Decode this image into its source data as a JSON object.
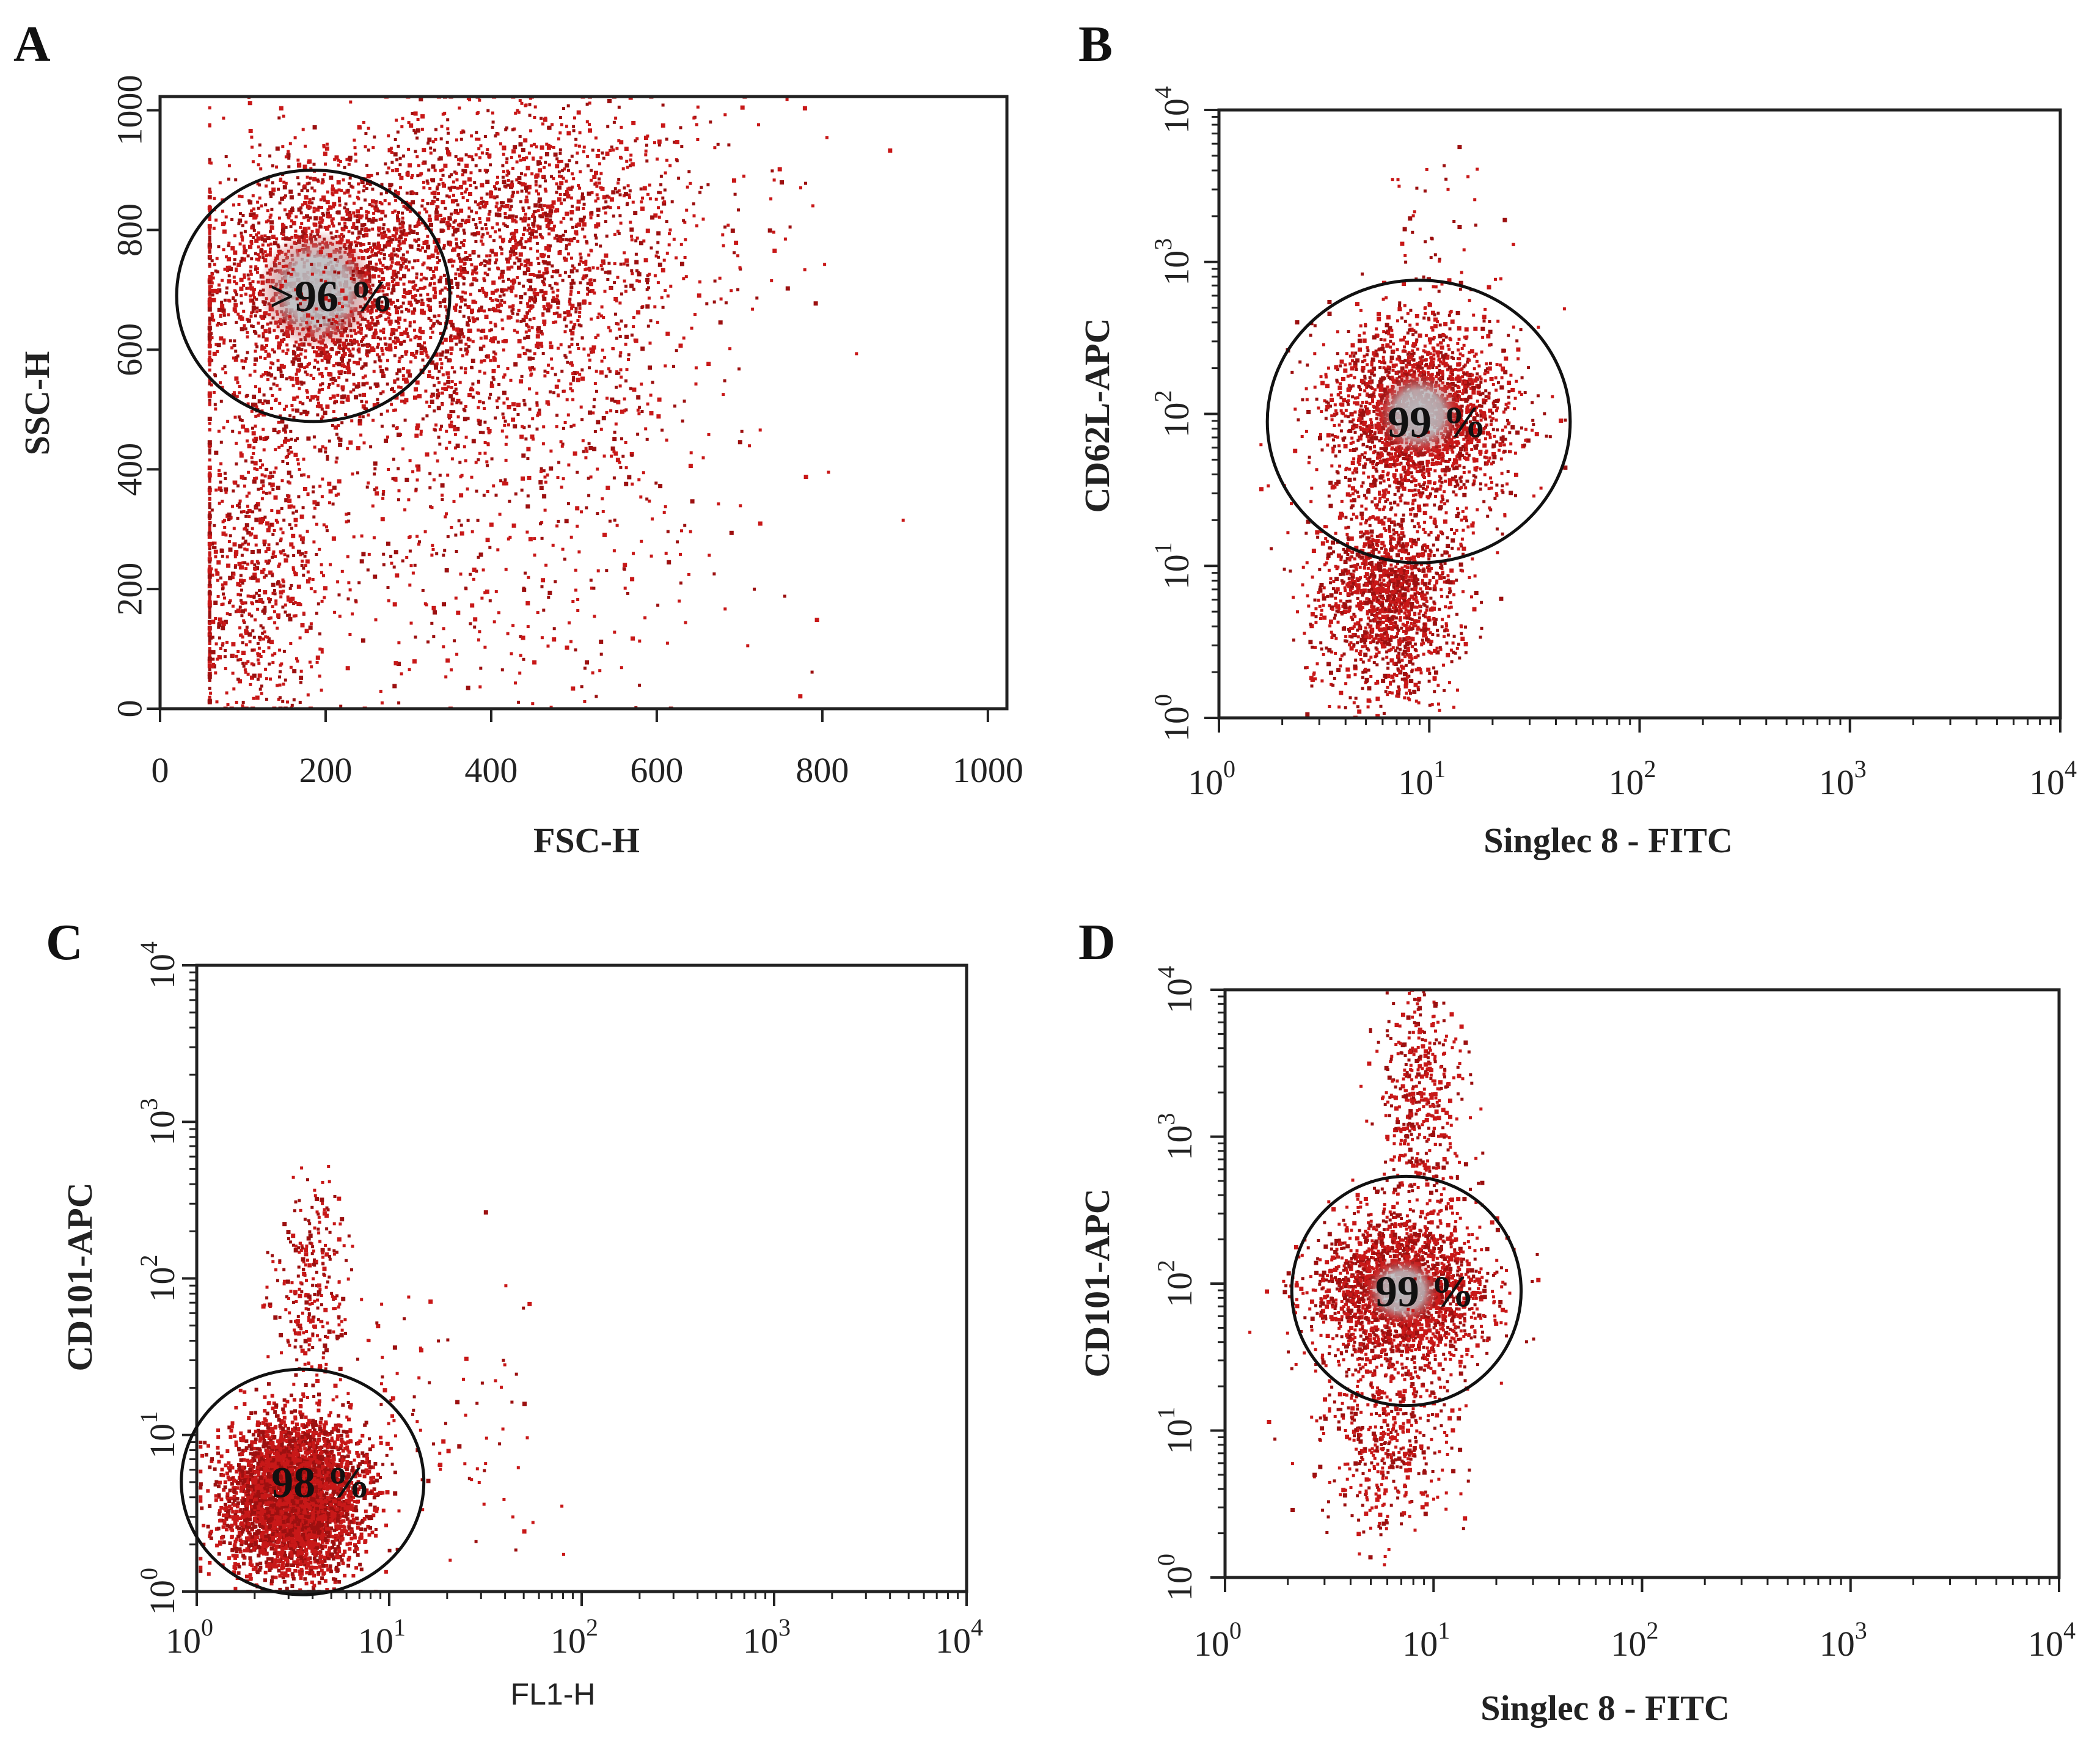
{
  "figure": {
    "colors": {
      "dot": "#c81818",
      "dot_dark": "#9c1010",
      "dense_core": "#b9b9bd",
      "gate": "#111111",
      "axis": "#222222"
    }
  },
  "chart_data": [
    {
      "panel": "A",
      "type": "scatter",
      "subtype": "flow-cytometry-density-dot-plot",
      "xlabel": "FSC-H",
      "ylabel": "SSC-H",
      "xscale": "linear",
      "yscale": "linear",
      "xlim": [
        0,
        1023
      ],
      "ylim": [
        0,
        1023
      ],
      "x_ticks": [
        "0",
        "200",
        "400",
        "600",
        "800",
        "1000"
      ],
      "x_tick_values": [
        0,
        200,
        400,
        600,
        800,
        1000
      ],
      "y_ticks": [
        "0",
        "200",
        "400",
        "600",
        "800",
        "1000"
      ],
      "y_tick_values": [
        0,
        200,
        400,
        600,
        800,
        1000
      ],
      "gate": {
        "shape": "circle",
        "center": [
          185,
          690
        ],
        "radius_x": 165,
        "radius_y": 210,
        "label": ">96 %"
      },
      "populations": [
        {
          "center": [
            190,
            700
          ],
          "spread": [
            75,
            105
          ],
          "count": 1800,
          "core": true
        },
        {
          "center": [
            380,
            680
          ],
          "spread": [
            130,
            170
          ],
          "count": 1800,
          "core": false
        },
        {
          "center": [
            430,
            820
          ],
          "spread": [
            130,
            120
          ],
          "count": 900,
          "core": false
        },
        {
          "center": [
            110,
            220
          ],
          "spread": [
            50,
            170
          ],
          "count": 900,
          "core": false
        },
        {
          "center": [
            420,
            250
          ],
          "spread": [
            150,
            140
          ],
          "count": 350,
          "core": false
        }
      ]
    },
    {
      "panel": "B",
      "type": "scatter",
      "subtype": "flow-cytometry-density-dot-plot",
      "xlabel": "Singlec 8 - FITC",
      "ylabel": "CD62L-APC",
      "xscale": "log",
      "yscale": "log",
      "xlim": [
        1,
        10000
      ],
      "ylim": [
        1,
        10000
      ],
      "x_ticks": [
        {
          "base": "10",
          "exp": "0"
        },
        {
          "base": "10",
          "exp": "1"
        },
        {
          "base": "10",
          "exp": "2"
        },
        {
          "base": "10",
          "exp": "3"
        },
        {
          "base": "10",
          "exp": "4"
        }
      ],
      "y_ticks": [
        {
          "base": "10",
          "exp": "0"
        },
        {
          "base": "10",
          "exp": "1"
        },
        {
          "base": "10",
          "exp": "2"
        },
        {
          "base": "10",
          "exp": "3"
        },
        {
          "base": "10",
          "exp": "4"
        }
      ],
      "gate": {
        "shape": "circle",
        "center_log": [
          0.95,
          1.95
        ],
        "radius_log_x": 0.72,
        "radius_log_y": 0.93,
        "label": "99 %"
      },
      "populations": [
        {
          "center_log": [
            0.95,
            2.0
          ],
          "spread_log": [
            0.22,
            0.3
          ],
          "count": 2200,
          "core": true
        },
        {
          "center_log": [
            0.8,
            0.8
          ],
          "spread_log": [
            0.17,
            0.35
          ],
          "count": 1500,
          "core": false
        },
        {
          "center_log": [
            1.05,
            3.1
          ],
          "spread_log": [
            0.15,
            0.45
          ],
          "count": 60,
          "core": false
        }
      ]
    },
    {
      "panel": "C",
      "type": "scatter",
      "subtype": "flow-cytometry-density-dot-plot",
      "xlabel": "FL1-H",
      "ylabel": "CD101-APC",
      "xscale": "log",
      "yscale": "log",
      "xlim": [
        1,
        10000
      ],
      "ylim": [
        1,
        10000
      ],
      "x_ticks": [
        {
          "base": "10",
          "exp": "0"
        },
        {
          "base": "10",
          "exp": "1"
        },
        {
          "base": "10",
          "exp": "2"
        },
        {
          "base": "10",
          "exp": "3"
        },
        {
          "base": "10",
          "exp": "4"
        }
      ],
      "y_ticks": [
        {
          "base": "10",
          "exp": "0"
        },
        {
          "base": "10",
          "exp": "1"
        },
        {
          "base": "10",
          "exp": "2"
        },
        {
          "base": "10",
          "exp": "3"
        },
        {
          "base": "10",
          "exp": "4"
        }
      ],
      "gate": {
        "shape": "circle",
        "center_log": [
          0.55,
          0.7
        ],
        "radius_log_x": 0.63,
        "radius_log_y": 0.72,
        "label": "98 %"
      },
      "populations": [
        {
          "center_log": [
            0.5,
            0.6
          ],
          "spread_log": [
            0.17,
            0.24
          ],
          "count": 3800,
          "core": false,
          "saturated": true
        },
        {
          "center_log": [
            0.6,
            1.95
          ],
          "spread_log": [
            0.1,
            0.35
          ],
          "count": 280,
          "core": false
        },
        {
          "center_log": [
            1.2,
            1.2
          ],
          "spread_log": [
            0.35,
            0.5
          ],
          "count": 120,
          "core": false
        }
      ]
    },
    {
      "panel": "D",
      "type": "scatter",
      "subtype": "flow-cytometry-density-dot-plot",
      "xlabel": "Singlec 8 - FITC",
      "ylabel": "CD101-APC",
      "xscale": "log",
      "yscale": "log",
      "xlim": [
        1,
        10000
      ],
      "ylim": [
        1,
        10000
      ],
      "x_ticks": [
        {
          "base": "10",
          "exp": "0"
        },
        {
          "base": "10",
          "exp": "1"
        },
        {
          "base": "10",
          "exp": "2"
        },
        {
          "base": "10",
          "exp": "3"
        },
        {
          "base": "10",
          "exp": "4"
        }
      ],
      "y_ticks": [
        {
          "base": "10",
          "exp": "0"
        },
        {
          "base": "10",
          "exp": "1"
        },
        {
          "base": "10",
          "exp": "2"
        },
        {
          "base": "10",
          "exp": "3"
        },
        {
          "base": "10",
          "exp": "4"
        }
      ],
      "gate": {
        "shape": "circle",
        "center_log": [
          0.87,
          1.95
        ],
        "radius_log_x": 0.55,
        "radius_log_y": 0.78,
        "label": "99 %"
      },
      "populations": [
        {
          "center_log": [
            0.85,
            1.95
          ],
          "spread_log": [
            0.2,
            0.25
          ],
          "count": 2200,
          "core": true
        },
        {
          "center_log": [
            0.78,
            0.95
          ],
          "spread_log": [
            0.16,
            0.3
          ],
          "count": 500,
          "core": false
        },
        {
          "center_log": [
            0.95,
            3.2
          ],
          "spread_log": [
            0.1,
            0.45
          ],
          "count": 500,
          "core": false
        }
      ]
    }
  ]
}
